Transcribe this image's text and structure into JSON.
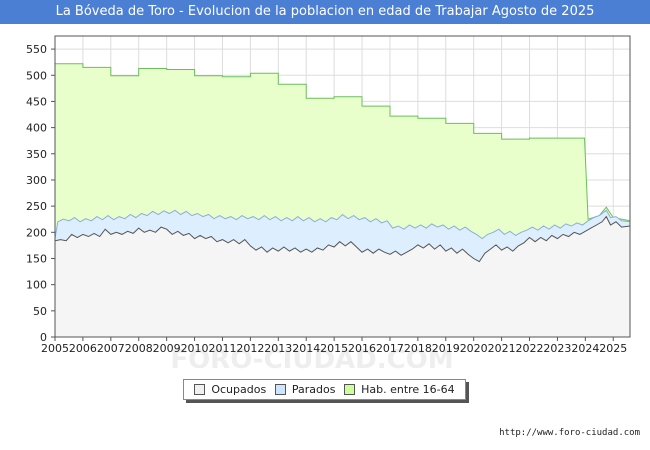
{
  "chart_data": {
    "type": "area",
    "title": "La Bóveda de Toro - Evolucion de la poblacion en edad de Trabajar Agosto de 2025",
    "xlabel": "",
    "ylabel": "",
    "x_range": [
      2005,
      2025.6
    ],
    "ylim": [
      0,
      575
    ],
    "yticks": [
      "0",
      "50",
      "100",
      "150",
      "200",
      "250",
      "300",
      "350",
      "400",
      "450",
      "500",
      "550"
    ],
    "xticks": [
      "2005",
      "2006",
      "2007",
      "2008",
      "2009",
      "2010",
      "2011",
      "2012",
      "2013",
      "2014",
      "2015",
      "2016",
      "2017",
      "2018",
      "2019",
      "2020",
      "2021",
      "2022",
      "2023",
      "2024",
      "2025"
    ],
    "grid": true,
    "watermark": "FORO-CIUDAD.COM",
    "series": [
      {
        "name": "Hab. entre 16-64",
        "color": "#e8ffcc",
        "line": "#6abf5a",
        "points": [
          [
            2005,
            522
          ],
          [
            2006,
            515
          ],
          [
            2007,
            499
          ],
          [
            2008,
            513
          ],
          [
            2009,
            511
          ],
          [
            2010,
            499
          ],
          [
            2011,
            497
          ],
          [
            2012,
            504
          ],
          [
            2013,
            483
          ],
          [
            2014,
            456
          ],
          [
            2015,
            459
          ],
          [
            2016,
            441
          ],
          [
            2017,
            422
          ],
          [
            2018,
            418
          ],
          [
            2019,
            408
          ],
          [
            2020,
            389
          ],
          [
            2021,
            378
          ],
          [
            2022,
            380
          ],
          [
            2023,
            380
          ]
        ],
        "tail": [
          [
            2023.97,
            380
          ],
          [
            2024.1,
            225
          ],
          [
            2024.5,
            232
          ],
          [
            2024.75,
            248
          ],
          [
            2025,
            228
          ],
          [
            2025.6,
            222
          ]
        ]
      },
      {
        "name": "Parados",
        "color": "#ddeeff",
        "line": "#8aaed8",
        "points": [
          [
            2005.0,
            188
          ],
          [
            2005.1,
            220
          ],
          [
            2005.3,
            225
          ],
          [
            2005.5,
            222
          ],
          [
            2005.7,
            228
          ],
          [
            2005.9,
            220
          ],
          [
            2006.1,
            226
          ],
          [
            2006.3,
            222
          ],
          [
            2006.5,
            230
          ],
          [
            2006.7,
            224
          ],
          [
            2006.9,
            232
          ],
          [
            2007.1,
            224
          ],
          [
            2007.3,
            230
          ],
          [
            2007.5,
            226
          ],
          [
            2007.7,
            234
          ],
          [
            2007.9,
            228
          ],
          [
            2008.1,
            236
          ],
          [
            2008.3,
            232
          ],
          [
            2008.5,
            240
          ],
          [
            2008.7,
            234
          ],
          [
            2008.9,
            241
          ],
          [
            2009.1,
            236
          ],
          [
            2009.3,
            242
          ],
          [
            2009.5,
            234
          ],
          [
            2009.7,
            240
          ],
          [
            2009.9,
            232
          ],
          [
            2010.1,
            236
          ],
          [
            2010.3,
            230
          ],
          [
            2010.5,
            234
          ],
          [
            2010.7,
            226
          ],
          [
            2010.9,
            232
          ],
          [
            2011.1,
            226
          ],
          [
            2011.3,
            230
          ],
          [
            2011.5,
            224
          ],
          [
            2011.7,
            232
          ],
          [
            2011.9,
            226
          ],
          [
            2012.1,
            230
          ],
          [
            2012.3,
            224
          ],
          [
            2012.5,
            232
          ],
          [
            2012.7,
            224
          ],
          [
            2012.9,
            230
          ],
          [
            2013.1,
            222
          ],
          [
            2013.3,
            228
          ],
          [
            2013.5,
            222
          ],
          [
            2013.7,
            230
          ],
          [
            2013.9,
            222
          ],
          [
            2014.1,
            228
          ],
          [
            2014.3,
            220
          ],
          [
            2014.5,
            226
          ],
          [
            2014.7,
            220
          ],
          [
            2014.9,
            228
          ],
          [
            2015.1,
            224
          ],
          [
            2015.3,
            234
          ],
          [
            2015.5,
            226
          ],
          [
            2015.7,
            232
          ],
          [
            2015.9,
            224
          ],
          [
            2016.1,
            228
          ],
          [
            2016.3,
            220
          ],
          [
            2016.5,
            226
          ],
          [
            2016.7,
            218
          ],
          [
            2016.9,
            222
          ],
          [
            2017.1,
            208
          ],
          [
            2017.3,
            212
          ],
          [
            2017.5,
            206
          ],
          [
            2017.7,
            214
          ],
          [
            2017.9,
            208
          ],
          [
            2018.1,
            214
          ],
          [
            2018.3,
            208
          ],
          [
            2018.5,
            216
          ],
          [
            2018.7,
            210
          ],
          [
            2018.9,
            214
          ],
          [
            2019.1,
            206
          ],
          [
            2019.3,
            212
          ],
          [
            2019.5,
            204
          ],
          [
            2019.7,
            210
          ],
          [
            2019.9,
            202
          ],
          [
            2020.1,
            196
          ],
          [
            2020.3,
            188
          ],
          [
            2020.5,
            196
          ],
          [
            2020.7,
            200
          ],
          [
            2020.9,
            206
          ],
          [
            2021.1,
            196
          ],
          [
            2021.3,
            202
          ],
          [
            2021.5,
            194
          ],
          [
            2021.7,
            200
          ],
          [
            2021.9,
            204
          ],
          [
            2022.1,
            210
          ],
          [
            2022.3,
            204
          ],
          [
            2022.5,
            212
          ],
          [
            2022.7,
            206
          ],
          [
            2022.9,
            214
          ],
          [
            2023.1,
            208
          ],
          [
            2023.3,
            216
          ],
          [
            2023.5,
            212
          ],
          [
            2023.7,
            218
          ],
          [
            2023.9,
            214
          ],
          [
            2024.1,
            222
          ],
          [
            2024.3,
            228
          ],
          [
            2024.5,
            232
          ],
          [
            2024.75,
            242
          ],
          [
            2024.9,
            228
          ],
          [
            2025.1,
            230
          ],
          [
            2025.3,
            222
          ],
          [
            2025.6,
            220
          ]
        ]
      },
      {
        "name": "Ocupados",
        "color": "#f5f5f5",
        "line": "#555555",
        "points": [
          [
            2005.0,
            184
          ],
          [
            2005.2,
            186
          ],
          [
            2005.4,
            184
          ],
          [
            2005.6,
            196
          ],
          [
            2005.8,
            190
          ],
          [
            2006.0,
            196
          ],
          [
            2006.2,
            192
          ],
          [
            2006.4,
            198
          ],
          [
            2006.6,
            192
          ],
          [
            2006.8,
            206
          ],
          [
            2007.0,
            196
          ],
          [
            2007.2,
            200
          ],
          [
            2007.4,
            196
          ],
          [
            2007.6,
            202
          ],
          [
            2007.8,
            198
          ],
          [
            2008.0,
            208
          ],
          [
            2008.2,
            200
          ],
          [
            2008.4,
            204
          ],
          [
            2008.6,
            200
          ],
          [
            2008.8,
            210
          ],
          [
            2009.0,
            206
          ],
          [
            2009.2,
            196
          ],
          [
            2009.4,
            202
          ],
          [
            2009.6,
            194
          ],
          [
            2009.8,
            198
          ],
          [
            2010.0,
            188
          ],
          [
            2010.2,
            194
          ],
          [
            2010.4,
            188
          ],
          [
            2010.6,
            192
          ],
          [
            2010.8,
            182
          ],
          [
            2011.0,
            186
          ],
          [
            2011.2,
            180
          ],
          [
            2011.4,
            186
          ],
          [
            2011.6,
            178
          ],
          [
            2011.8,
            186
          ],
          [
            2012.0,
            174
          ],
          [
            2012.2,
            166
          ],
          [
            2012.4,
            172
          ],
          [
            2012.6,
            162
          ],
          [
            2012.8,
            170
          ],
          [
            2013.0,
            164
          ],
          [
            2013.2,
            172
          ],
          [
            2013.4,
            164
          ],
          [
            2013.6,
            170
          ],
          [
            2013.8,
            162
          ],
          [
            2014.0,
            168
          ],
          [
            2014.2,
            162
          ],
          [
            2014.4,
            170
          ],
          [
            2014.6,
            166
          ],
          [
            2014.8,
            176
          ],
          [
            2015.0,
            172
          ],
          [
            2015.2,
            182
          ],
          [
            2015.4,
            174
          ],
          [
            2015.6,
            182
          ],
          [
            2015.8,
            172
          ],
          [
            2016.0,
            162
          ],
          [
            2016.2,
            168
          ],
          [
            2016.4,
            160
          ],
          [
            2016.6,
            168
          ],
          [
            2016.8,
            162
          ],
          [
            2017.0,
            158
          ],
          [
            2017.2,
            164
          ],
          [
            2017.4,
            156
          ],
          [
            2017.6,
            162
          ],
          [
            2017.8,
            168
          ],
          [
            2018.0,
            176
          ],
          [
            2018.2,
            170
          ],
          [
            2018.4,
            178
          ],
          [
            2018.6,
            168
          ],
          [
            2018.8,
            176
          ],
          [
            2019.0,
            164
          ],
          [
            2019.2,
            170
          ],
          [
            2019.4,
            160
          ],
          [
            2019.6,
            168
          ],
          [
            2019.8,
            158
          ],
          [
            2020.0,
            150
          ],
          [
            2020.2,
            144
          ],
          [
            2020.4,
            160
          ],
          [
            2020.6,
            168
          ],
          [
            2020.8,
            176
          ],
          [
            2021.0,
            166
          ],
          [
            2021.2,
            172
          ],
          [
            2021.4,
            164
          ],
          [
            2021.6,
            174
          ],
          [
            2021.8,
            180
          ],
          [
            2022.0,
            190
          ],
          [
            2022.2,
            182
          ],
          [
            2022.4,
            190
          ],
          [
            2022.6,
            184
          ],
          [
            2022.8,
            194
          ],
          [
            2023.0,
            188
          ],
          [
            2023.2,
            196
          ],
          [
            2023.4,
            192
          ],
          [
            2023.6,
            200
          ],
          [
            2023.8,
            196
          ],
          [
            2024.0,
            202
          ],
          [
            2024.2,
            208
          ],
          [
            2024.4,
            214
          ],
          [
            2024.6,
            220
          ],
          [
            2024.75,
            230
          ],
          [
            2024.9,
            214
          ],
          [
            2025.1,
            220
          ],
          [
            2025.3,
            210
          ],
          [
            2025.6,
            212
          ]
        ]
      }
    ]
  },
  "legend": {
    "ocupados": "Ocupados",
    "parados": "Parados",
    "hab": "Hab. entre 16-64"
  },
  "footer": {
    "url": "http://www.foro-ciudad.com"
  }
}
